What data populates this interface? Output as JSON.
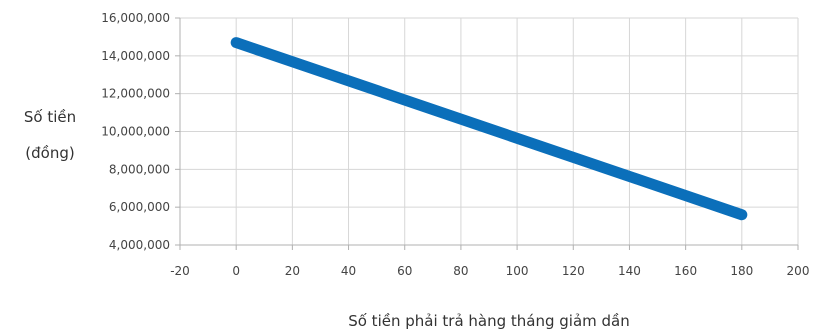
{
  "chart_data": {
    "type": "line",
    "title": "",
    "xlabel": "Số tiền phải trả hàng tháng giảm dần",
    "ylabel_lines": [
      "Số tiền",
      "(đồng)"
    ],
    "xlim": [
      -20,
      200
    ],
    "ylim": [
      4000000,
      16000000
    ],
    "x_ticks": [
      -20,
      0,
      20,
      40,
      60,
      80,
      100,
      120,
      140,
      160,
      180,
      200
    ],
    "x_tick_labels": [
      "-20",
      "0",
      "20",
      "40",
      "60",
      "80",
      "100",
      "120",
      "140",
      "160",
      "180",
      "200"
    ],
    "y_ticks": [
      4000000,
      6000000,
      8000000,
      10000000,
      12000000,
      14000000,
      16000000
    ],
    "y_tick_labels": [
      "4,000,000",
      "6,000,000",
      "8,000,000",
      "10,000,000",
      "12,000,000",
      "14,000,000",
      "16,000,000"
    ],
    "grid": true,
    "series": [
      {
        "color": "#0b6fba",
        "x": [
          0,
          180
        ],
        "y": [
          14700000,
          5600000
        ]
      }
    ]
  }
}
